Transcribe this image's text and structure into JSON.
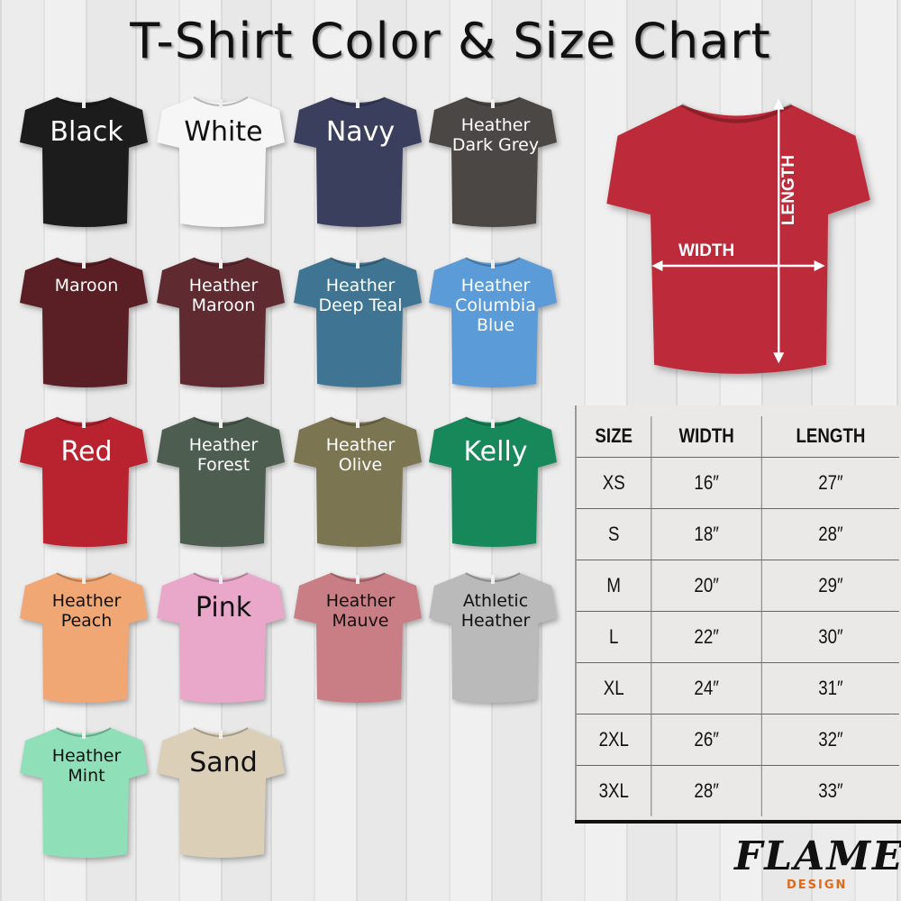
{
  "title": "T-Shirt Color & Size Chart",
  "colors": [
    {
      "label": "Black",
      "color": "#1c1c1c",
      "text": "#ffffff",
      "big": true
    },
    {
      "label": "White",
      "color": "#f6f6f6",
      "text": "#111111",
      "big": true
    },
    {
      "label": "Navy",
      "color": "#3b3f5e",
      "text": "#ffffff",
      "big": true
    },
    {
      "label": "Heather Dark Grey",
      "color": "#4b4745",
      "text": "#ffffff"
    },
    {
      "label": "Maroon",
      "color": "#5a1f24",
      "text": "#ffffff"
    },
    {
      "label": "Heather Maroon",
      "color": "#5f2b30",
      "text": "#ffffff"
    },
    {
      "label": "Heather Deep Teal",
      "color": "#3f7592",
      "text": "#ffffff"
    },
    {
      "label": "Heather Columbia Blue",
      "color": "#5b9bd8",
      "text": "#ffffff"
    },
    {
      "label": "Red",
      "color": "#b9222f",
      "text": "#ffffff",
      "big": true
    },
    {
      "label": "Heather Forest",
      "color": "#4d5e50",
      "text": "#ffffff"
    },
    {
      "label": "Heather Olive",
      "color": "#7c7551",
      "text": "#ffffff"
    },
    {
      "label": "Kelly",
      "color": "#17885a",
      "text": "#ffffff",
      "big": true
    },
    {
      "label": "Heather Peach",
      "color": "#f0a774",
      "text": "#111111"
    },
    {
      "label": "Pink",
      "color": "#e9a7c9",
      "text": "#111111",
      "big": true
    },
    {
      "label": "Heather Mauve",
      "color": "#c97d84",
      "text": "#111111"
    },
    {
      "label": "Athletic Heather",
      "color": "#bababa",
      "text": "#111111"
    },
    {
      "label": "Heather Mint",
      "color": "#8fe0b9",
      "text": "#111111"
    },
    {
      "label": "Sand",
      "color": "#dccfb8",
      "text": "#111111",
      "big": true
    }
  ],
  "measure_shirt": {
    "color": "#bd2a3a",
    "width_label": "WIDTH",
    "length_label": "LENGTH"
  },
  "size_table": {
    "headers": [
      "SIZE",
      "WIDTH",
      "LENGTH"
    ],
    "rows": [
      [
        "XS",
        "16″",
        "27″"
      ],
      [
        "S",
        "18″",
        "28″"
      ],
      [
        "M",
        "20″",
        "29″"
      ],
      [
        "L",
        "22″",
        "30″"
      ],
      [
        "XL",
        "24″",
        "31″"
      ],
      [
        "2XL",
        "26″",
        "32″"
      ],
      [
        "3XL",
        "28″",
        "33″"
      ]
    ]
  },
  "logo": {
    "word": "FLAME",
    "sub": "DESIGN"
  }
}
